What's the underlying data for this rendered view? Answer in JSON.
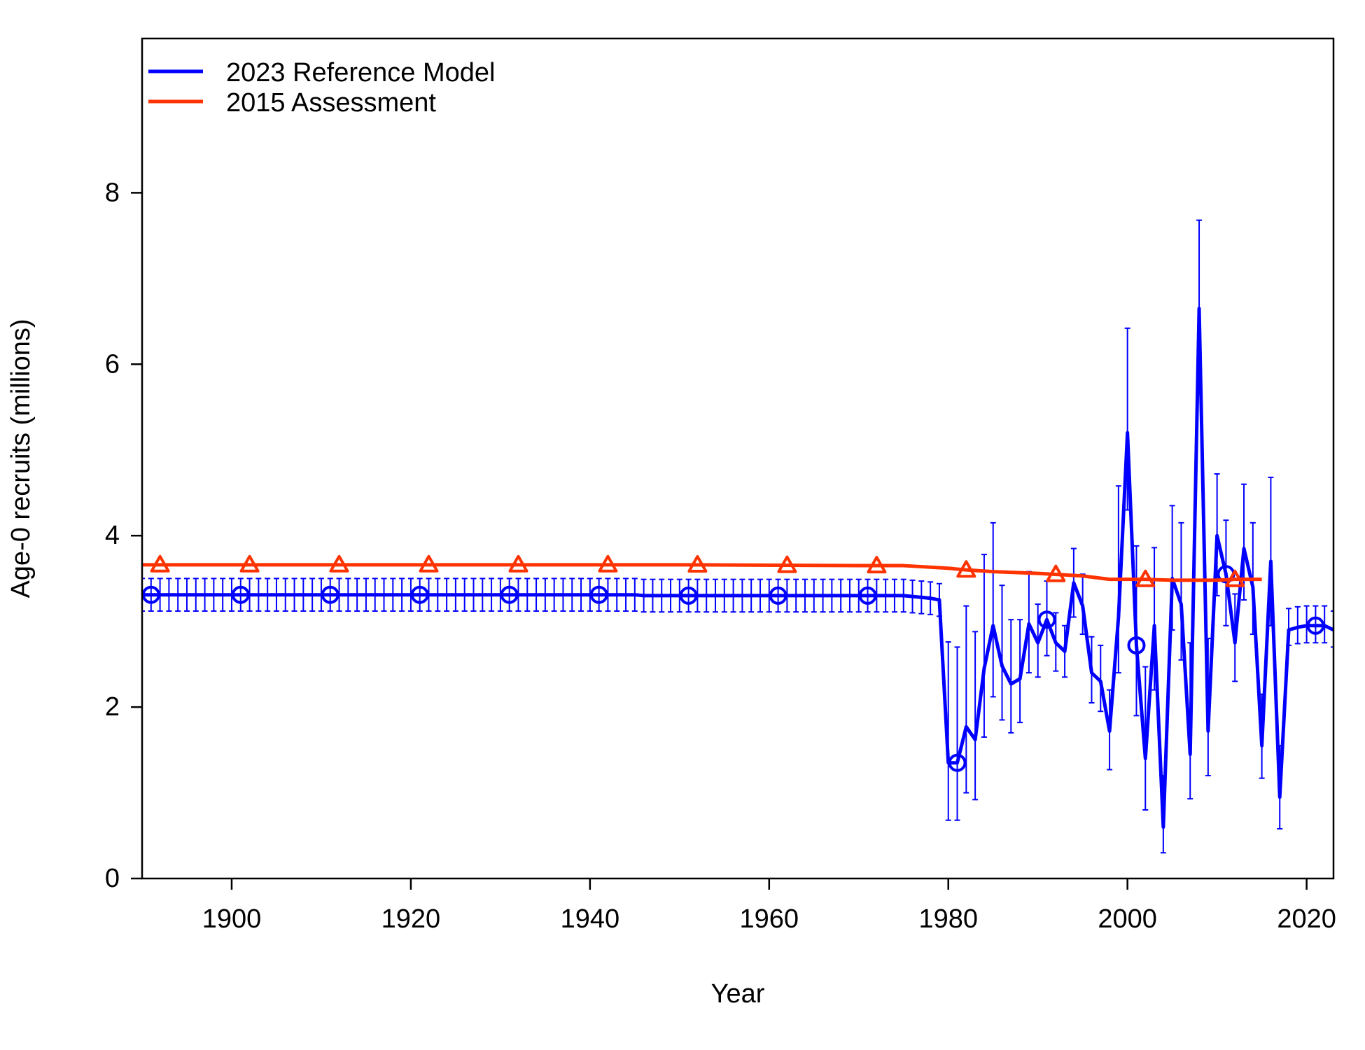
{
  "chart_data": {
    "type": "line",
    "xlabel": "Year",
    "ylabel": "Age-0 recruits (millions)",
    "xlim": [
      1890,
      2023
    ],
    "ylim": [
      0,
      9.8
    ],
    "x_ticks": [
      1900,
      1920,
      1940,
      1960,
      1980,
      2000,
      2020
    ],
    "y_ticks": [
      0,
      2,
      4,
      6,
      8
    ],
    "legend": {
      "position": "top-left"
    },
    "grid": false,
    "series": [
      {
        "name": "2023 Reference Model",
        "color": "#0000FF",
        "marker": "circle",
        "marker_years": [
          1891,
          1901,
          1911,
          1921,
          1931,
          1941,
          1951,
          1961,
          1971,
          1981,
          1991,
          2001,
          2011,
          2021
        ],
        "x": [
          1890,
          1891,
          1892,
          1893,
          1894,
          1895,
          1896,
          1897,
          1898,
          1899,
          1900,
          1901,
          1902,
          1903,
          1904,
          1905,
          1906,
          1907,
          1908,
          1909,
          1910,
          1911,
          1912,
          1913,
          1914,
          1915,
          1916,
          1917,
          1918,
          1919,
          1920,
          1921,
          1922,
          1923,
          1924,
          1925,
          1926,
          1927,
          1928,
          1929,
          1930,
          1931,
          1932,
          1933,
          1934,
          1935,
          1936,
          1937,
          1938,
          1939,
          1940,
          1941,
          1942,
          1943,
          1944,
          1945,
          1946,
          1947,
          1948,
          1949,
          1950,
          1951,
          1952,
          1953,
          1954,
          1955,
          1956,
          1957,
          1958,
          1959,
          1960,
          1961,
          1962,
          1963,
          1964,
          1965,
          1966,
          1967,
          1968,
          1969,
          1970,
          1971,
          1972,
          1973,
          1974,
          1975,
          1976,
          1977,
          1978,
          1979,
          1980,
          1981,
          1982,
          1983,
          1984,
          1985,
          1986,
          1987,
          1988,
          1989,
          1990,
          1991,
          1992,
          1993,
          1994,
          1995,
          1996,
          1997,
          1998,
          1999,
          2000,
          2001,
          2002,
          2003,
          2004,
          2005,
          2006,
          2007,
          2008,
          2009,
          2010,
          2011,
          2012,
          2013,
          2014,
          2015,
          2016,
          2017,
          2018,
          2019,
          2020,
          2021,
          2022,
          2023
        ],
        "y": [
          3.31,
          3.31,
          3.31,
          3.31,
          3.31,
          3.31,
          3.31,
          3.31,
          3.31,
          3.31,
          3.31,
          3.31,
          3.31,
          3.31,
          3.31,
          3.31,
          3.31,
          3.31,
          3.31,
          3.31,
          3.31,
          3.31,
          3.31,
          3.31,
          3.31,
          3.31,
          3.31,
          3.31,
          3.31,
          3.31,
          3.31,
          3.31,
          3.31,
          3.31,
          3.31,
          3.31,
          3.31,
          3.31,
          3.31,
          3.31,
          3.31,
          3.31,
          3.31,
          3.31,
          3.31,
          3.31,
          3.31,
          3.31,
          3.31,
          3.31,
          3.31,
          3.31,
          3.31,
          3.31,
          3.31,
          3.31,
          3.3,
          3.3,
          3.3,
          3.3,
          3.3,
          3.3,
          3.3,
          3.3,
          3.3,
          3.3,
          3.3,
          3.3,
          3.3,
          3.3,
          3.3,
          3.3,
          3.3,
          3.3,
          3.3,
          3.3,
          3.3,
          3.3,
          3.3,
          3.3,
          3.3,
          3.3,
          3.3,
          3.3,
          3.3,
          3.3,
          3.29,
          3.28,
          3.27,
          3.25,
          1.35,
          1.35,
          1.77,
          1.62,
          2.45,
          2.95,
          2.48,
          2.27,
          2.33,
          2.97,
          2.75,
          3.02,
          2.75,
          2.65,
          3.45,
          3.18,
          2.4,
          2.3,
          1.72,
          3.05,
          5.2,
          2.72,
          1.4,
          2.95,
          0.6,
          3.5,
          3.2,
          1.45,
          6.65,
          1.72,
          4.0,
          3.55,
          2.75,
          3.85,
          3.4,
          1.55,
          3.7,
          0.95,
          2.9,
          2.93,
          2.95,
          2.95,
          2.95,
          2.9
        ],
        "ci_lower": [
          3.12,
          3.12,
          3.12,
          3.12,
          3.12,
          3.12,
          3.12,
          3.12,
          3.12,
          3.12,
          3.12,
          3.12,
          3.12,
          3.12,
          3.12,
          3.12,
          3.12,
          3.12,
          3.12,
          3.12,
          3.12,
          3.12,
          3.12,
          3.12,
          3.12,
          3.12,
          3.12,
          3.12,
          3.12,
          3.12,
          3.12,
          3.12,
          3.12,
          3.12,
          3.12,
          3.12,
          3.12,
          3.12,
          3.12,
          3.12,
          3.12,
          3.12,
          3.12,
          3.12,
          3.12,
          3.12,
          3.12,
          3.12,
          3.12,
          3.12,
          3.12,
          3.12,
          3.12,
          3.12,
          3.12,
          3.12,
          3.11,
          3.11,
          3.11,
          3.11,
          3.11,
          3.11,
          3.11,
          3.11,
          3.11,
          3.11,
          3.11,
          3.11,
          3.11,
          3.11,
          3.11,
          3.11,
          3.11,
          3.11,
          3.11,
          3.11,
          3.11,
          3.11,
          3.11,
          3.11,
          3.11,
          3.11,
          3.11,
          3.11,
          3.11,
          3.11,
          3.1,
          3.09,
          3.08,
          3.06,
          0.68,
          0.68,
          1.0,
          0.92,
          1.65,
          2.12,
          1.85,
          1.7,
          1.82,
          2.4,
          2.35,
          2.6,
          2.42,
          2.35,
          3.05,
          2.85,
          2.05,
          1.95,
          1.27,
          2.4,
          4.3,
          1.9,
          0.8,
          2.2,
          0.3,
          2.9,
          2.55,
          0.93,
          5.75,
          1.2,
          3.3,
          2.95,
          2.3,
          3.25,
          2.85,
          1.17,
          2.95,
          0.58,
          2.72,
          2.74,
          2.75,
          2.75,
          2.75,
          2.7
        ],
        "ci_upper": [
          3.5,
          3.5,
          3.5,
          3.5,
          3.5,
          3.5,
          3.5,
          3.5,
          3.5,
          3.5,
          3.5,
          3.5,
          3.5,
          3.5,
          3.5,
          3.5,
          3.5,
          3.5,
          3.5,
          3.5,
          3.5,
          3.5,
          3.5,
          3.5,
          3.5,
          3.5,
          3.5,
          3.5,
          3.5,
          3.5,
          3.5,
          3.5,
          3.5,
          3.5,
          3.5,
          3.5,
          3.5,
          3.5,
          3.5,
          3.5,
          3.5,
          3.5,
          3.5,
          3.5,
          3.5,
          3.5,
          3.5,
          3.5,
          3.5,
          3.5,
          3.5,
          3.5,
          3.5,
          3.5,
          3.5,
          3.5,
          3.49,
          3.49,
          3.49,
          3.49,
          3.49,
          3.49,
          3.49,
          3.49,
          3.49,
          3.49,
          3.49,
          3.49,
          3.49,
          3.49,
          3.49,
          3.49,
          3.49,
          3.49,
          3.49,
          3.49,
          3.49,
          3.49,
          3.49,
          3.49,
          3.49,
          3.49,
          3.49,
          3.49,
          3.49,
          3.49,
          3.48,
          3.47,
          3.46,
          3.44,
          2.76,
          2.7,
          3.18,
          2.88,
          3.78,
          4.15,
          3.42,
          3.02,
          3.02,
          3.58,
          3.2,
          3.47,
          3.1,
          2.95,
          3.85,
          3.55,
          2.82,
          2.72,
          2.2,
          4.58,
          6.42,
          3.88,
          2.47,
          3.86,
          1.2,
          4.35,
          4.15,
          2.75,
          7.68,
          2.8,
          4.72,
          4.18,
          3.32,
          4.6,
          4.15,
          2.15,
          4.68,
          1.55,
          3.15,
          3.17,
          3.18,
          3.18,
          3.18,
          3.12
        ]
      },
      {
        "name": "2015 Assessment",
        "color": "#FF3300",
        "marker": "triangle",
        "marker_years": [
          1892,
          1902,
          1912,
          1922,
          1932,
          1942,
          1952,
          1962,
          1972,
          1982,
          1992,
          2002,
          2012
        ],
        "x": [
          1890,
          1950,
          1970,
          1975,
          1980,
          1982,
          1985,
          1990,
          1995,
          1998,
          2000,
          2002,
          2005,
          2010,
          2012,
          2015
        ],
        "y": [
          3.66,
          3.66,
          3.65,
          3.65,
          3.62,
          3.6,
          3.58,
          3.56,
          3.53,
          3.49,
          3.49,
          3.49,
          3.48,
          3.48,
          3.49,
          3.49
        ]
      }
    ]
  }
}
